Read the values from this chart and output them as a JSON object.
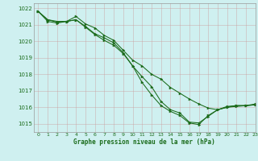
{
  "title": "Graphe pression niveau de la mer (hPa)",
  "bg_color": "#cff0f0",
  "grid_color": "#bbcccc",
  "line_color": "#1a6b1a",
  "xlim": [
    -0.5,
    23
  ],
  "ylim": [
    1014.5,
    1022.3
  ],
  "yticks": [
    1015,
    1016,
    1017,
    1018,
    1019,
    1020,
    1021,
    1022
  ],
  "xticks": [
    0,
    1,
    2,
    3,
    4,
    5,
    6,
    7,
    8,
    9,
    10,
    11,
    12,
    13,
    14,
    15,
    16,
    17,
    18,
    19,
    20,
    21,
    22,
    23
  ],
  "line1_x": [
    0,
    1,
    2,
    3,
    4,
    5,
    6,
    7,
    8,
    9,
    10,
    11,
    12,
    13,
    14,
    15,
    16,
    17,
    18,
    19,
    20,
    21,
    22,
    23
  ],
  "line1_y": [
    1021.8,
    1021.3,
    1021.2,
    1021.2,
    1021.5,
    1021.05,
    1020.8,
    1020.35,
    1020.05,
    1019.45,
    1018.85,
    1018.5,
    1018.0,
    1017.7,
    1017.2,
    1016.85,
    1016.5,
    1016.2,
    1015.95,
    1015.85,
    1016.05,
    1016.1,
    1016.1,
    1016.2
  ],
  "line2_x": [
    0,
    1,
    2,
    3,
    4,
    5,
    6,
    7,
    8,
    9,
    10,
    11,
    12,
    13,
    14,
    15,
    16,
    17,
    18,
    19,
    20,
    21,
    22,
    23
  ],
  "line2_y": [
    1021.8,
    1021.3,
    1021.15,
    1021.2,
    1021.3,
    1020.9,
    1020.45,
    1020.2,
    1019.9,
    1019.3,
    1018.5,
    1017.85,
    1017.25,
    1016.35,
    1015.85,
    1015.65,
    1015.1,
    1015.05,
    1015.45,
    1015.85,
    1016.0,
    1016.1,
    1016.1,
    1016.15
  ],
  "line3_x": [
    0,
    1,
    2,
    3,
    4,
    5,
    6,
    7,
    8,
    9,
    10,
    11,
    12,
    13,
    14,
    15,
    16,
    17,
    18,
    19,
    20,
    21,
    22,
    23
  ],
  "line3_y": [
    1021.8,
    1021.2,
    1021.1,
    1021.2,
    1021.3,
    1020.85,
    1020.4,
    1020.05,
    1019.75,
    1019.25,
    1018.5,
    1017.5,
    1016.75,
    1016.1,
    1015.75,
    1015.5,
    1015.05,
    1014.95,
    1015.5,
    1015.85,
    1016.0,
    1016.05,
    1016.1,
    1016.15
  ]
}
